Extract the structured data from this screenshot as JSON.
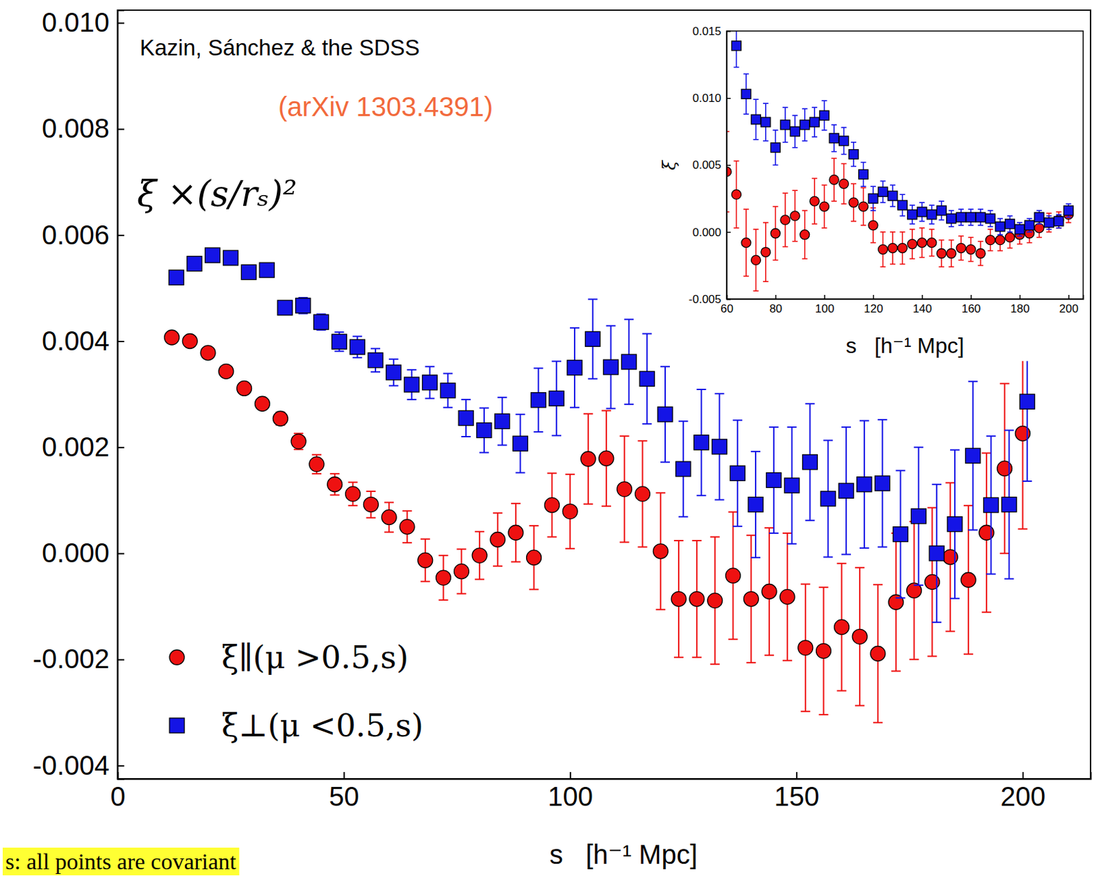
{
  "chart_data": [
    {
      "type": "scatter",
      "annotations": [
        "Kazin, Sánchez & the SDSS",
        "(arXiv 1303.4391)",
        "s: all points are covariant"
      ],
      "y_label": "ξ ×(s/rₛ)²",
      "x_label": "s   [h⁻¹ Mpc]",
      "xlim": [
        0,
        215
      ],
      "xticks": [
        0,
        50,
        100,
        150,
        200
      ],
      "ylim": [
        -0.00425,
        0.01024
      ],
      "yticks": [
        {
          "value": -0.004,
          "label": "-0.004"
        },
        {
          "value": -0.002,
          "label": "-0.002"
        },
        {
          "value": 0,
          "label": "0.000"
        },
        {
          "value": 0.002,
          "label": "0.002"
        },
        {
          "value": 0.004,
          "label": "0.004"
        },
        {
          "value": 0.006,
          "label": "0.006"
        },
        {
          "value": 0.008,
          "label": "0.008"
        },
        {
          "value": 0.01,
          "label": "0.010"
        }
      ],
      "legend": "lower left",
      "series": [
        {
          "name": "ξ∥(μ >0.5,s)",
          "color": "#ee1111",
          "marker": "circle",
          "x": [
            12,
            16,
            20,
            24,
            28,
            32,
            36,
            40,
            44,
            48,
            52,
            56,
            60,
            64,
            68,
            72,
            76,
            80,
            84,
            88,
            92,
            96,
            100,
            104,
            108,
            112,
            116,
            120,
            124,
            128,
            132,
            136,
            140,
            144,
            148,
            152,
            156,
            160,
            164,
            168,
            172,
            176,
            180,
            184,
            188,
            192,
            196,
            200
          ],
          "values": [
            0.00407,
            0.004,
            0.00378,
            0.00343,
            0.00311,
            0.00282,
            0.00254,
            0.00211,
            0.00168,
            0.0013,
            0.00112,
            0.00092,
            0.00068,
            0.0005,
            -0.00013,
            -0.00046,
            -0.00034,
            -4e-05,
            0.00026,
            0.00039,
            -8e-05,
            0.00091,
            0.00079,
            0.00178,
            0.00179,
            0.00121,
            0.00112,
            4e-05,
            -0.00086,
            -0.00086,
            -0.00089,
            -0.00042,
            -0.00086,
            -0.00072,
            -0.00082,
            -0.00178,
            -0.00184,
            -0.00139,
            -0.00157,
            -0.00189,
            -0.00092,
            -0.0007,
            -0.00054,
            -7e-05,
            -0.0005,
            0.00039,
            0.0016,
            0.00226
          ],
          "errors": [
            5e-05,
            5e-05,
            6e-05,
            7e-05,
            8e-05,
            0.0001,
            0.00012,
            0.00015,
            0.00018,
            0.0002,
            0.00022,
            0.00025,
            0.00028,
            0.0003,
            0.0004,
            0.00042,
            0.00042,
            0.00045,
            0.0005,
            0.00055,
            0.0006,
            0.0006,
            0.0007,
            0.00085,
            0.0009,
            0.001,
            0.001,
            0.0011,
            0.0011,
            0.0011,
            0.0012,
            0.0012,
            0.0012,
            0.0012,
            0.0012,
            0.0012,
            0.0012,
            0.0012,
            0.0013,
            0.0013,
            0.0013,
            0.0013,
            0.0014,
            0.0014,
            0.0014,
            0.0015,
            0.0016,
            0.0018
          ]
        },
        {
          "name": "ξ⊥(μ <0.5,s)",
          "color": "#1414e6",
          "marker": "square",
          "x": [
            13,
            17,
            21,
            25,
            29,
            33,
            37,
            41,
            45,
            49,
            53,
            57,
            61,
            65,
            69,
            73,
            77,
            81,
            85,
            89,
            93,
            97,
            101,
            105,
            109,
            113,
            117,
            121,
            125,
            129,
            133,
            137,
            141,
            145,
            149,
            153,
            157,
            161,
            165,
            169,
            173,
            177,
            181,
            185,
            189,
            193,
            197,
            201
          ],
          "values": [
            0.0052,
            0.00546,
            0.00562,
            0.00557,
            0.0053,
            0.00534,
            0.00463,
            0.00467,
            0.00436,
            0.00399,
            0.00389,
            0.00364,
            0.00341,
            0.00318,
            0.00322,
            0.00307,
            0.00255,
            0.00232,
            0.00249,
            0.00207,
            0.00289,
            0.00292,
            0.0035,
            0.00404,
            0.00351,
            0.00361,
            0.00329,
            0.00262,
            0.00159,
            0.00209,
            0.00201,
            0.00151,
            0.00092,
            0.00138,
            0.00128,
            0.00172,
            0.00103,
            0.00118,
            0.0013,
            0.00132,
            0.00036,
            0.0007,
            0,
            0.00055,
            0.00184,
            0.00091,
            0.00092,
            0.00286
          ],
          "errors": [
            4e-05,
            4e-05,
            5e-05,
            5e-05,
            6e-05,
            7e-05,
            0.00012,
            0.00015,
            0.00015,
            0.00018,
            0.0002,
            0.00022,
            0.00025,
            0.00028,
            0.0003,
            0.00032,
            0.00035,
            0.00042,
            0.00045,
            0.00055,
            0.0006,
            0.0007,
            0.00075,
            0.00075,
            0.00078,
            0.0008,
            0.00085,
            0.0009,
            0.0009,
            0.001,
            0.001,
            0.001,
            0.001,
            0.001,
            0.0011,
            0.0011,
            0.0011,
            0.0012,
            0.0012,
            0.0012,
            0.0012,
            0.0013,
            0.0013,
            0.0014,
            0.0014,
            0.0013,
            0.0014,
            0.0015
          ]
        }
      ]
    },
    {
      "type": "scatter",
      "y_label": "ξ",
      "x_label": "s   [h⁻¹ Mpc]",
      "xlim": [
        60,
        206
      ],
      "xticks": [
        60,
        80,
        100,
        120,
        140,
        160,
        180,
        200
      ],
      "ylim": [
        -0.005,
        0.015
      ],
      "yticks": [
        -0.005,
        {
          "value": 0,
          "label": "0.000"
        },
        0.005,
        {
          "value": 0.01,
          "label": "0.010"
        },
        0.015
      ],
      "series": [
        {
          "name": "ξ∥(μ >0.5,s)",
          "color": "#ee1111",
          "marker": "circle",
          "x": [
            60,
            64,
            68,
            72,
            76,
            80,
            84,
            88,
            92,
            96,
            100,
            104,
            108,
            112,
            116,
            120,
            124,
            128,
            132,
            136,
            140,
            144,
            148,
            152,
            156,
            160,
            164,
            168,
            172,
            176,
            180,
            184,
            188,
            192,
            196,
            200
          ],
          "values": [
            0.0045,
            0.0028,
            -0.0008,
            -0.0021,
            -0.0015,
            -0.0001,
            0.0009,
            0.0012,
            -0.0002,
            0.0023,
            0.0019,
            0.0039,
            0.0036,
            0.0022,
            0.0019,
            0.0005,
            -0.0013,
            -0.0012,
            -0.0012,
            -0.0009,
            -0.0008,
            -0.0008,
            -0.0016,
            -0.0016,
            -0.0012,
            -0.0013,
            -0.0016,
            -0.0006,
            -0.0006,
            -0.0004,
            -0.0002,
            -0.0001,
            0.0003,
            0.0007,
            0.0009,
            0.0013
          ],
          "errors": [
            0.003,
            0.0025,
            0.0025,
            0.0023,
            0.0022,
            0.002,
            0.002,
            0.0019,
            0.0018,
            0.0017,
            0.0016,
            0.0016,
            0.0015,
            0.0014,
            0.0014,
            0.0013,
            0.0013,
            0.0012,
            0.0012,
            0.0011,
            0.0011,
            0.001,
            0.001,
            0.001,
            0.0009,
            0.0009,
            0.0009,
            0.0008,
            0.0008,
            0.0008,
            0.0007,
            0.0007,
            0.0007,
            0.0007,
            0.0006,
            0.0006
          ]
        },
        {
          "name": "ξ⊥(μ <0.5,s)",
          "color": "#1414e6",
          "marker": "square",
          "x": [
            64,
            68,
            72,
            76,
            80,
            84,
            88,
            92,
            96,
            100,
            104,
            108,
            112,
            116,
            120,
            124,
            128,
            132,
            136,
            140,
            144,
            148,
            152,
            156,
            160,
            164,
            168,
            172,
            176,
            180,
            184,
            188,
            192,
            196,
            200
          ],
          "values": [
            0.0139,
            0.0103,
            0.0084,
            0.0082,
            0.0063,
            0.008,
            0.0075,
            0.008,
            0.0082,
            0.0087,
            0.007,
            0.0068,
            0.0058,
            0.0043,
            0.0025,
            0.003,
            0.0027,
            0.002,
            0.0013,
            0.0015,
            0.0013,
            0.0016,
            0.001,
            0.0011,
            0.0011,
            0.0011,
            0.001,
            0.0004,
            0.0006,
            0.0002,
            0.0005,
            0.0011,
            0.0007,
            0.0008,
            0.0016
          ],
          "errors": [
            0.0016,
            0.0015,
            0.0015,
            0.0014,
            0.0013,
            0.0013,
            0.0012,
            0.0012,
            0.0011,
            0.0011,
            0.001,
            0.001,
            0.0009,
            0.0009,
            0.0009,
            0.0008,
            0.0008,
            0.0008,
            0.0007,
            0.0007,
            0.0007,
            0.0007,
            0.0006,
            0.0006,
            0.0006,
            0.0006,
            0.0006,
            0.0006,
            0.0006,
            0.0005,
            0.0005,
            0.0005,
            0.0005,
            0.0005,
            0.0005
          ]
        }
      ]
    }
  ]
}
